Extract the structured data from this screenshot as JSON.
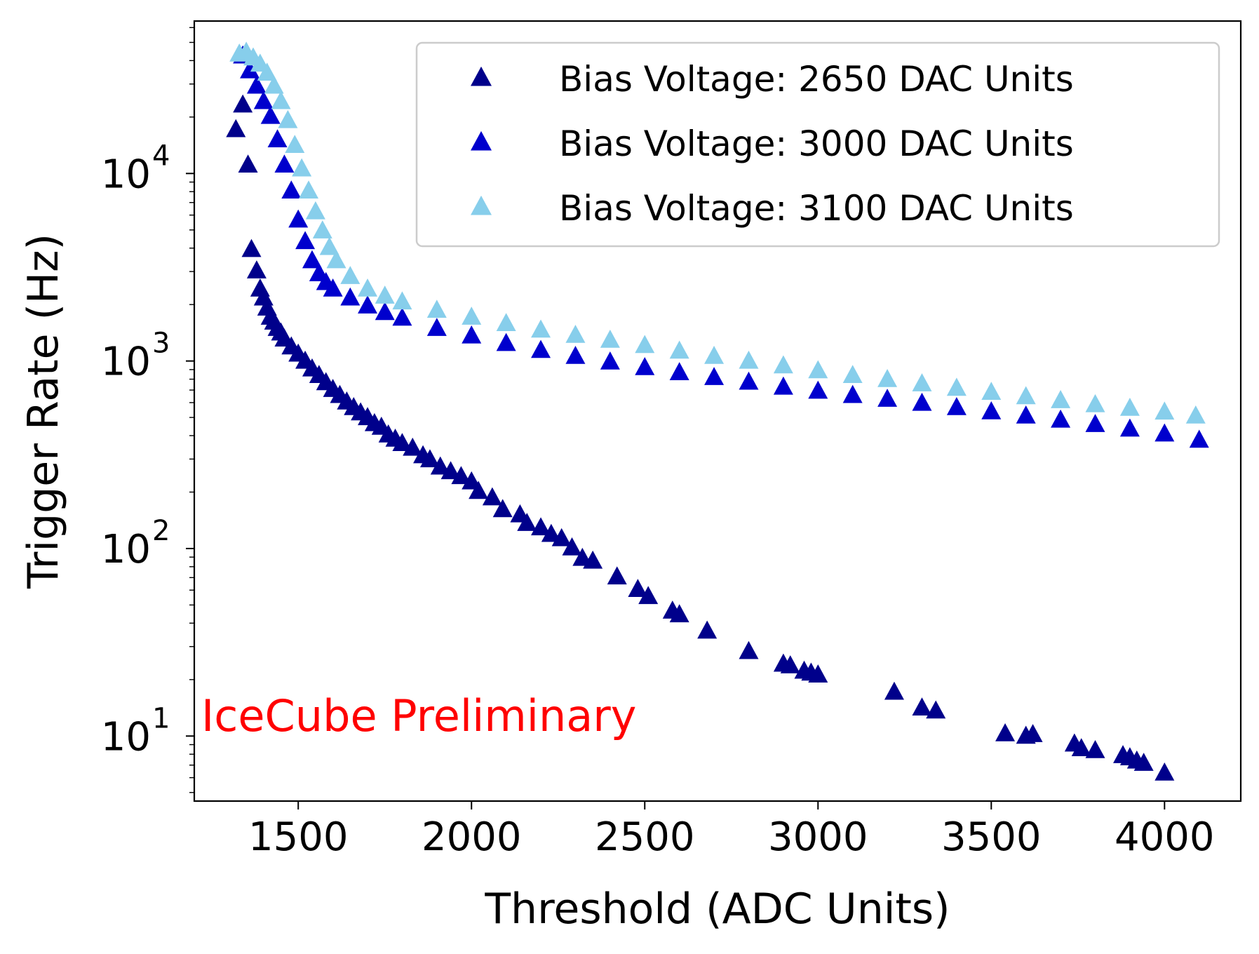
{
  "chart_data": {
    "type": "scatter",
    "xlabel": "Threshold (ADC Units)",
    "ylabel": "Trigger Rate (Hz)",
    "xlim": [
      1200,
      4220
    ],
    "ylim": [
      4.5,
      65000
    ],
    "yscale": "log",
    "grid": false,
    "legend_position": "top-right",
    "x_ticks": [
      1500,
      2000,
      2500,
      3000,
      3500,
      4000
    ],
    "y_ticks": [
      {
        "value": 10,
        "base": "10",
        "exp": "1"
      },
      {
        "value": 100,
        "base": "10",
        "exp": "2"
      },
      {
        "value": 1000,
        "base": "10",
        "exp": "3"
      },
      {
        "value": 10000,
        "base": "10",
        "exp": "4"
      }
    ],
    "annotation": {
      "text": "IceCube Preliminary",
      "color": "#ff0000"
    },
    "series": [
      {
        "name": "Bias Voltage: 2650 DAC Units",
        "color": "#00008b",
        "marker": "triangle",
        "x": [
          1320,
          1340,
          1355,
          1365,
          1380,
          1390,
          1400,
          1410,
          1420,
          1430,
          1440,
          1450,
          1460,
          1480,
          1500,
          1520,
          1540,
          1560,
          1580,
          1600,
          1620,
          1640,
          1660,
          1680,
          1700,
          1720,
          1740,
          1760,
          1780,
          1800,
          1830,
          1860,
          1880,
          1910,
          1940,
          1970,
          2000,
          2020,
          2060,
          2090,
          2140,
          2160,
          2200,
          2230,
          2260,
          2290,
          2320,
          2350,
          2420,
          2480,
          2510,
          2580,
          2600,
          2680,
          2800,
          2900,
          2920,
          2960,
          2980,
          3000,
          3220,
          3300,
          3340,
          3540,
          3600,
          3620,
          3740,
          3760,
          3800,
          3880,
          3900,
          3920,
          3940,
          4000
        ],
        "y": [
          17000,
          23000,
          11000,
          3900,
          3000,
          2400,
          2150,
          1900,
          1700,
          1600,
          1480,
          1400,
          1300,
          1180,
          1080,
          990,
          900,
          830,
          760,
          700,
          650,
          600,
          560,
          525,
          495,
          460,
          440,
          400,
          380,
          360,
          340,
          310,
          295,
          270,
          255,
          240,
          225,
          200,
          185,
          160,
          150,
          135,
          128,
          118,
          112,
          100,
          88,
          85,
          70,
          60,
          55,
          46,
          44,
          36,
          28,
          24,
          23.5,
          22,
          21.5,
          21,
          17,
          14,
          13.5,
          10.2,
          9.9,
          10.1,
          9,
          8.5,
          8.3,
          7.8,
          7.6,
          7.3,
          7.1,
          6.3
        ]
      },
      {
        "name": "Bias Voltage: 3000 DAC Units",
        "color": "#0000cd",
        "marker": "triangle",
        "x": [
          1340,
          1360,
          1380,
          1400,
          1420,
          1440,
          1460,
          1480,
          1500,
          1520,
          1540,
          1560,
          1580,
          1600,
          1650,
          1700,
          1750,
          1800,
          1900,
          2000,
          2100,
          2200,
          2300,
          2400,
          2500,
          2600,
          2700,
          2800,
          2900,
          3000,
          3100,
          3200,
          3300,
          3400,
          3500,
          3600,
          3700,
          3800,
          3900,
          4000,
          4100
        ],
        "y": [
          42000,
          35000,
          29000,
          24000,
          20000,
          15000,
          11000,
          8000,
          5600,
          4300,
          3400,
          2900,
          2600,
          2400,
          2150,
          1950,
          1800,
          1680,
          1480,
          1350,
          1230,
          1130,
          1050,
          980,
          915,
          860,
          810,
          765,
          720,
          685,
          650,
          620,
          590,
          560,
          532,
          505,
          480,
          455,
          430,
          405,
          375
        ]
      },
      {
        "name": "Bias Voltage: 3100 DAC Units",
        "color": "#87ceeb",
        "marker": "triangle",
        "x": [
          1330,
          1350,
          1370,
          1390,
          1410,
          1430,
          1450,
          1470,
          1490,
          1510,
          1530,
          1550,
          1570,
          1590,
          1610,
          1650,
          1700,
          1750,
          1800,
          1900,
          2000,
          2100,
          2200,
          2300,
          2400,
          2500,
          2600,
          2700,
          2800,
          2900,
          3000,
          3100,
          3200,
          3300,
          3400,
          3500,
          3600,
          3700,
          3800,
          3900,
          4000,
          4090
        ],
        "y": [
          43000,
          44000,
          41000,
          38000,
          34000,
          29000,
          24000,
          19000,
          14000,
          10500,
          8000,
          6200,
          4900,
          4000,
          3400,
          2800,
          2400,
          2200,
          2050,
          1850,
          1700,
          1570,
          1450,
          1360,
          1280,
          1200,
          1120,
          1050,
          990,
          935,
          880,
          830,
          790,
          750,
          710,
          675,
          640,
          610,
          580,
          555,
          530,
          505
        ]
      }
    ]
  }
}
